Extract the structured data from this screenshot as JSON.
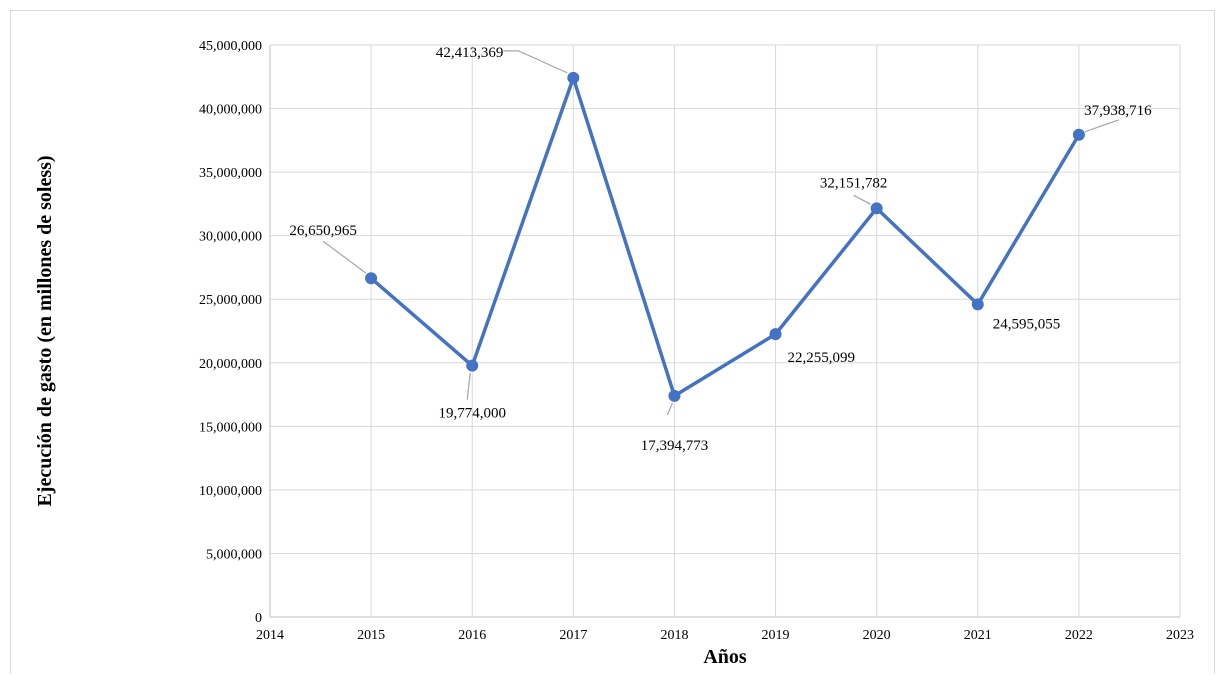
{
  "chart_data": {
    "type": "scatter",
    "xlabel": "Años",
    "ylabel": "Ejecución de gasto (en millones de soless)",
    "xlim": [
      2014,
      2023
    ],
    "ylim": [
      0,
      45000000
    ],
    "x_ticks": [
      2014,
      2015,
      2016,
      2017,
      2018,
      2019,
      2020,
      2021,
      2022,
      2023
    ],
    "y_ticks": [
      0,
      5000000,
      10000000,
      15000000,
      20000000,
      25000000,
      30000000,
      35000000,
      40000000,
      45000000
    ],
    "y_tick_labels": [
      "0",
      "5,000,000",
      "10,000,000",
      "15,000,000",
      "20,000,000",
      "25,000,000",
      "30,000,000",
      "35,000,000",
      "40,000,000",
      "45,000,000"
    ],
    "grid": true,
    "line_color": "#4472c4",
    "marker": "circle",
    "series": [
      {
        "x": [
          2015,
          2016,
          2017,
          2018,
          2019,
          2020,
          2021,
          2022
        ],
        "y": [
          26650965,
          19774000,
          42413369,
          17394773,
          22255099,
          32151782,
          24595055,
          37938716
        ],
        "labels": [
          "26,650,965",
          "19,774,000",
          "42,413,369",
          "17,394,773",
          "22,255,099",
          "32,151,782",
          "24,595,055",
          "37,938,716"
        ]
      }
    ]
  }
}
